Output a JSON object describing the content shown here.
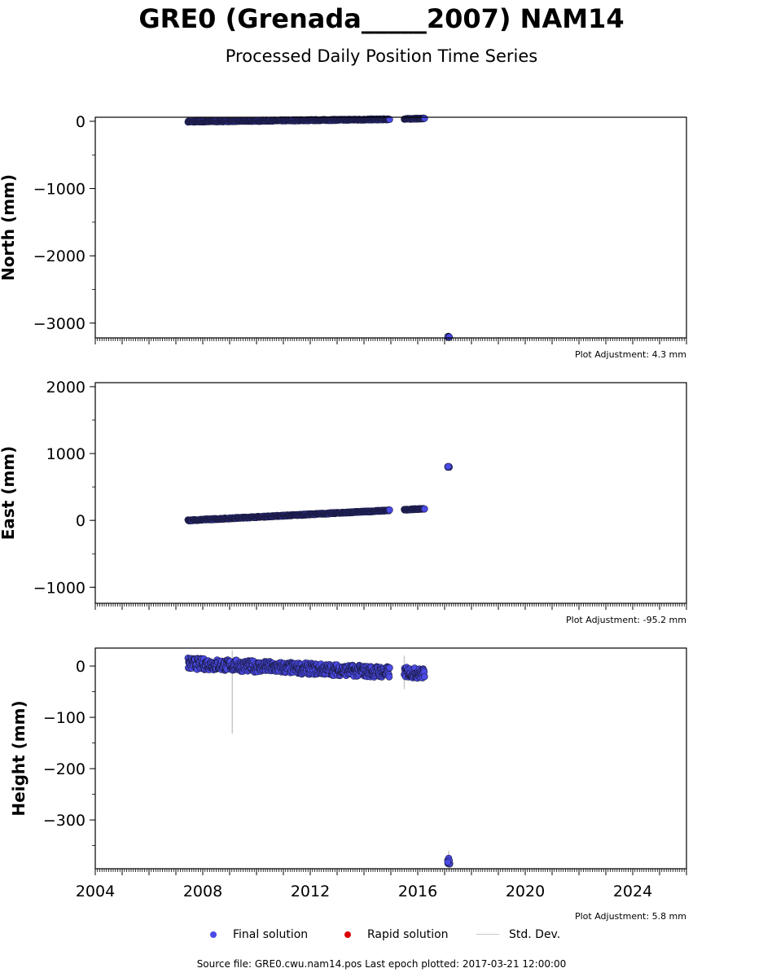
{
  "title": "GRE0 (Grenada_____2007) NAM14",
  "subtitle": "Processed Daily Position Time Series",
  "source_note": "Source file: GRE0.cwu.nam14.pos  Last epoch plotted: 2017-03-21 12:00:00",
  "legend": {
    "final": "Final solution",
    "rapid": "Rapid solution",
    "std": "Std. Dev."
  },
  "colors": {
    "final": "#4a4ae6",
    "final_edge": "#1a1a40",
    "rapid": "#dd0000",
    "std": "#c8c8c8"
  },
  "chart_data": [
    {
      "type": "scatter",
      "ylabel": "North (mm)",
      "adjustment": "Plot Adjustment: 4.3 mm",
      "xlim": [
        2004.0,
        2026.0
      ],
      "ylim": [
        -3220,
        60
      ],
      "yticks": [
        0,
        -1000,
        -2000,
        -3000
      ],
      "ytick_labels": [
        "0",
        "−1000",
        "−2000",
        "−3000"
      ],
      "segments": [
        {
          "x0": 2007.45,
          "x1": 2014.95,
          "y0": -5,
          "y1": 30,
          "noise": 8
        },
        {
          "x0": 2015.5,
          "x1": 2016.25,
          "y0": 35,
          "y1": 42,
          "noise": 6
        }
      ],
      "clusters": [
        {
          "x": 2017.15,
          "y": -3205,
          "n": 8,
          "spread": 8
        }
      ],
      "std_lines": []
    },
    {
      "type": "scatter",
      "ylabel": "East (mm)",
      "adjustment": "Plot Adjustment: -95.2 mm",
      "xlim": [
        2004.0,
        2026.0
      ],
      "ylim": [
        -1240,
        2060
      ],
      "yticks": [
        2000,
        1000,
        0,
        -1000
      ],
      "ytick_labels": [
        "2000",
        "1000",
        "0",
        "−1000"
      ],
      "segments": [
        {
          "x0": 2007.45,
          "x1": 2014.95,
          "y0": 0,
          "y1": 150,
          "noise": 8
        },
        {
          "x0": 2015.5,
          "x1": 2016.25,
          "y0": 160,
          "y1": 175,
          "noise": 6
        }
      ],
      "clusters": [
        {
          "x": 2017.15,
          "y": 800,
          "n": 8,
          "spread": 8
        }
      ],
      "std_lines": []
    },
    {
      "type": "scatter",
      "ylabel": "Height (mm)",
      "adjustment": "Plot Adjustment: 5.8 mm",
      "xlim": [
        2004.0,
        2026.0
      ],
      "ylim": [
        -395,
        35
      ],
      "yticks": [
        0,
        -100,
        -200,
        -300
      ],
      "ytick_labels": [
        "0",
        "−100",
        "−200",
        "−300"
      ],
      "xticks": [
        2004,
        2008,
        2012,
        2016,
        2020,
        2024
      ],
      "xtick_labels": [
        "2004",
        "2008",
        "2012",
        "2016",
        "2020",
        "2024"
      ],
      "segments": [
        {
          "x0": 2007.45,
          "x1": 2014.95,
          "y0": 5,
          "y1": -12,
          "noise": 11
        },
        {
          "x0": 2015.5,
          "x1": 2016.25,
          "y0": -12,
          "y1": -15,
          "noise": 10
        }
      ],
      "clusters": [
        {
          "x": 2017.15,
          "y": -380,
          "n": 8,
          "spread": 6
        }
      ],
      "std_lines": [
        {
          "x": 2009.1,
          "y0": -132,
          "y1": 30
        },
        {
          "x": 2015.5,
          "y0": -45,
          "y1": 20
        },
        {
          "x": 2017.15,
          "y0": -395,
          "y1": -360
        }
      ]
    }
  ]
}
